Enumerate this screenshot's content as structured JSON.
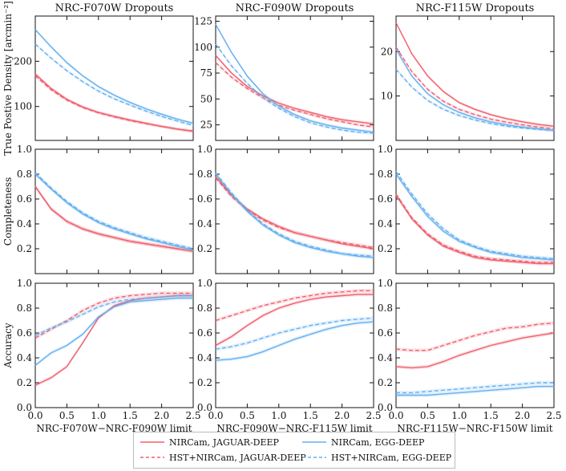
{
  "figure": {
    "y_labels": [
      "True Postive Density [arcmin⁻²]",
      "Completeness",
      "Accuracy"
    ],
    "legend": [
      {
        "label": "NIRCam, JAGUAR-DEEP",
        "color": "#f0606e",
        "dash": false
      },
      {
        "label": "NIRCam, EGG-DEEP",
        "color": "#66b0f0",
        "dash": false
      },
      {
        "label": "HST+NIRCam, JAGUAR-DEEP",
        "color": "#f0606e",
        "dash": true
      },
      {
        "label": "HST+NIRCam, EGG-DEEP",
        "color": "#66b0f0",
        "dash": true
      }
    ]
  },
  "chart_data": [
    {
      "type": "line",
      "row": 0,
      "col": 0,
      "title": "NRC-F070W Dropouts",
      "xlabel": "",
      "ylabel": "True Postive Density [arcmin⁻²]",
      "xlim": [
        0,
        2.5
      ],
      "ylim": [
        25,
        300
      ],
      "yticks": [
        100,
        200
      ],
      "x": [
        0,
        0.25,
        0.5,
        0.75,
        1,
        1.25,
        1.5,
        1.75,
        2,
        2.25,
        2.5
      ],
      "series": [
        {
          "name": "NIRCam, JAGUAR-DEEP",
          "color": "#f0606e",
          "dash": false,
          "values": [
            172,
            140,
            116,
            99,
            87,
            78,
            70,
            63,
            56,
            50,
            45
          ]
        },
        {
          "name": "HST+NIRCam, JAGUAR-DEEP",
          "color": "#f0606e",
          "dash": true,
          "values": [
            168,
            137,
            114,
            98,
            86,
            77,
            69,
            62,
            56,
            50,
            46
          ]
        },
        {
          "name": "NIRCam, EGG-DEEP",
          "color": "#66b0f0",
          "dash": false,
          "values": [
            270,
            232,
            197,
            168,
            144,
            125,
            109,
            95,
            83,
            72,
            63
          ]
        },
        {
          "name": "HST+NIRCam, EGG-DEEP",
          "color": "#66b0f0",
          "dash": true,
          "values": [
            238,
            207,
            179,
            155,
            134,
            117,
            103,
            90,
            78,
            68,
            58
          ]
        }
      ]
    },
    {
      "type": "line",
      "row": 0,
      "col": 1,
      "title": "NRC-F090W Dropouts",
      "xlabel": "",
      "ylabel": "",
      "xlim": [
        0,
        2.5
      ],
      "ylim": [
        10,
        130
      ],
      "yticks": [
        25,
        50,
        75,
        100,
        125
      ],
      "x": [
        0,
        0.25,
        0.5,
        0.75,
        1,
        1.25,
        1.5,
        1.75,
        2,
        2.25,
        2.5
      ],
      "series": [
        {
          "name": "NIRCam, JAGUAR-DEEP",
          "color": "#f0606e",
          "dash": false,
          "values": [
            92,
            75,
            62,
            53,
            46,
            41,
            37,
            33,
            30,
            28,
            26
          ]
        },
        {
          "name": "HST+NIRCam, JAGUAR-DEEP",
          "color": "#f0606e",
          "dash": true,
          "values": [
            85,
            71,
            60,
            51,
            44,
            39,
            35,
            31,
            28,
            25,
            23
          ]
        },
        {
          "name": "NIRCam, EGG-DEEP",
          "color": "#66b0f0",
          "dash": false,
          "values": [
            122,
            95,
            72,
            55,
            43,
            35,
            29,
            25,
            22,
            20,
            18
          ]
        },
        {
          "name": "HST+NIRCam, EGG-DEEP",
          "color": "#66b0f0",
          "dash": true,
          "values": [
            103,
            82,
            65,
            51,
            41,
            33,
            27,
            23,
            20,
            18,
            17
          ]
        }
      ]
    },
    {
      "type": "line",
      "row": 0,
      "col": 2,
      "title": "NRC-F115W Dropouts",
      "xlabel": "",
      "ylabel": "",
      "xlim": [
        0,
        2.5
      ],
      "ylim": [
        0,
        28
      ],
      "yticks": [
        10,
        20
      ],
      "x": [
        0,
        0.25,
        0.5,
        0.75,
        1,
        1.25,
        1.5,
        1.75,
        2,
        2.25,
        2.5
      ],
      "series": [
        {
          "name": "NIRCam, JAGUAR-DEEP",
          "color": "#f0606e",
          "dash": false,
          "values": [
            26.5,
            19.5,
            14.5,
            11,
            8.5,
            7,
            5.8,
            4.9,
            4.2,
            3.6,
            3.2
          ]
        },
        {
          "name": "HST+NIRCam, JAGUAR-DEEP",
          "color": "#f0606e",
          "dash": true,
          "values": [
            21,
            15.5,
            11.5,
            8.8,
            7,
            5.8,
            4.8,
            4.1,
            3.5,
            3,
            2.6
          ]
        },
        {
          "name": "NIRCam, EGG-DEEP",
          "color": "#66b0f0",
          "dash": false,
          "values": [
            20.5,
            14.5,
            10.5,
            8,
            6.3,
            5.1,
            4.2,
            3.5,
            3,
            2.6,
            2.3
          ]
        },
        {
          "name": "HST+NIRCam, EGG-DEEP",
          "color": "#66b0f0",
          "dash": true,
          "values": [
            16,
            12,
            9,
            7,
            5.6,
            4.6,
            3.8,
            3.2,
            2.8,
            2.5,
            2.2
          ]
        }
      ]
    },
    {
      "type": "line",
      "row": 1,
      "col": 0,
      "title": "",
      "xlabel": "",
      "ylabel": "Completeness",
      "xlim": [
        0,
        2.5
      ],
      "ylim": [
        0,
        1
      ],
      "yticks": [
        0.2,
        0.4,
        0.6,
        0.8,
        1.0
      ],
      "x": [
        0,
        0.25,
        0.5,
        0.75,
        1,
        1.25,
        1.5,
        1.75,
        2,
        2.25,
        2.5
      ],
      "series": [
        {
          "name": "NIRCam, JAGUAR-DEEP",
          "color": "#f0606e",
          "dash": false,
          "values": [
            0.7,
            0.52,
            0.42,
            0.36,
            0.32,
            0.29,
            0.26,
            0.24,
            0.22,
            0.2,
            0.18
          ]
        },
        {
          "name": "HST+NIRCam, JAGUAR-DEEP",
          "color": "#f0606e",
          "dash": true,
          "values": [
            0.7,
            0.52,
            0.42,
            0.36,
            0.32,
            0.29,
            0.26,
            0.24,
            0.22,
            0.2,
            0.18
          ]
        },
        {
          "name": "NIRCam, EGG-DEEP",
          "color": "#66b0f0",
          "dash": false,
          "values": [
            0.8,
            0.68,
            0.57,
            0.48,
            0.41,
            0.36,
            0.32,
            0.28,
            0.25,
            0.22,
            0.19
          ]
        },
        {
          "name": "HST+NIRCam, EGG-DEEP",
          "color": "#66b0f0",
          "dash": true,
          "values": [
            0.81,
            0.69,
            0.58,
            0.49,
            0.42,
            0.37,
            0.33,
            0.29,
            0.26,
            0.23,
            0.2
          ]
        }
      ]
    },
    {
      "type": "line",
      "row": 1,
      "col": 1,
      "title": "",
      "xlabel": "",
      "ylabel": "",
      "xlim": [
        0,
        2.5
      ],
      "ylim": [
        0,
        1
      ],
      "yticks": [
        0.2,
        0.4,
        0.6,
        0.8,
        1.0
      ],
      "x": [
        0,
        0.25,
        0.5,
        0.75,
        1,
        1.25,
        1.5,
        1.75,
        2,
        2.25,
        2.5
      ],
      "series": [
        {
          "name": "NIRCam, JAGUAR-DEEP",
          "color": "#f0606e",
          "dash": false,
          "values": [
            0.78,
            0.63,
            0.52,
            0.44,
            0.38,
            0.33,
            0.3,
            0.27,
            0.24,
            0.22,
            0.2
          ]
        },
        {
          "name": "HST+NIRCam, JAGUAR-DEEP",
          "color": "#f0606e",
          "dash": true,
          "values": [
            0.77,
            0.62,
            0.51,
            0.43,
            0.37,
            0.33,
            0.3,
            0.27,
            0.25,
            0.23,
            0.21
          ]
        },
        {
          "name": "NIRCam, EGG-DEEP",
          "color": "#66b0f0",
          "dash": false,
          "values": [
            0.8,
            0.64,
            0.5,
            0.39,
            0.31,
            0.25,
            0.21,
            0.18,
            0.16,
            0.14,
            0.13
          ]
        },
        {
          "name": "HST+NIRCam, EGG-DEEP",
          "color": "#66b0f0",
          "dash": true,
          "values": [
            0.81,
            0.65,
            0.51,
            0.4,
            0.32,
            0.26,
            0.22,
            0.19,
            0.16,
            0.15,
            0.14
          ]
        }
      ]
    },
    {
      "type": "line",
      "row": 1,
      "col": 2,
      "title": "",
      "xlabel": "",
      "ylabel": "",
      "xlim": [
        0,
        2.5
      ],
      "ylim": [
        0,
        1
      ],
      "yticks": [
        0.2,
        0.4,
        0.6,
        0.8,
        1.0
      ],
      "x": [
        0,
        0.25,
        0.5,
        0.75,
        1,
        1.25,
        1.5,
        1.75,
        2,
        2.25,
        2.5
      ],
      "series": [
        {
          "name": "NIRCam, JAGUAR-DEEP",
          "color": "#f0606e",
          "dash": false,
          "values": [
            0.63,
            0.44,
            0.31,
            0.22,
            0.17,
            0.13,
            0.11,
            0.1,
            0.09,
            0.08,
            0.08
          ]
        },
        {
          "name": "HST+NIRCam, JAGUAR-DEEP",
          "color": "#f0606e",
          "dash": true,
          "values": [
            0.64,
            0.45,
            0.32,
            0.23,
            0.18,
            0.14,
            0.12,
            0.11,
            0.1,
            0.09,
            0.09
          ]
        },
        {
          "name": "NIRCam, EGG-DEEP",
          "color": "#66b0f0",
          "dash": false,
          "values": [
            0.8,
            0.62,
            0.46,
            0.34,
            0.26,
            0.21,
            0.17,
            0.15,
            0.13,
            0.12,
            0.11
          ]
        },
        {
          "name": "HST+NIRCam, EGG-DEEP",
          "color": "#66b0f0",
          "dash": true,
          "values": [
            0.82,
            0.64,
            0.48,
            0.36,
            0.27,
            0.22,
            0.18,
            0.16,
            0.14,
            0.13,
            0.12
          ]
        }
      ]
    },
    {
      "type": "line",
      "row": 2,
      "col": 0,
      "title": "",
      "xlabel": "NRC-F070W−NRC-F090W limit",
      "ylabel": "Accuracy",
      "xlim": [
        0,
        2.5
      ],
      "ylim": [
        0,
        1
      ],
      "yticks": [
        0.0,
        0.2,
        0.4,
        0.6,
        0.8,
        1.0
      ],
      "xticks": [
        0.0,
        0.5,
        1.0,
        1.5,
        2.0,
        2.5
      ],
      "x": [
        0,
        0.25,
        0.5,
        0.75,
        1,
        1.25,
        1.5,
        1.75,
        2,
        2.25,
        2.5
      ],
      "series": [
        {
          "name": "NIRCam, JAGUAR-DEEP",
          "color": "#f0606e",
          "dash": false,
          "values": [
            0.18,
            0.24,
            0.33,
            0.52,
            0.72,
            0.82,
            0.86,
            0.88,
            0.89,
            0.9,
            0.9
          ]
        },
        {
          "name": "HST+NIRCam, JAGUAR-DEEP",
          "color": "#f0606e",
          "dash": true,
          "values": [
            0.56,
            0.63,
            0.7,
            0.78,
            0.84,
            0.88,
            0.9,
            0.91,
            0.92,
            0.92,
            0.92
          ]
        },
        {
          "name": "NIRCam, EGG-DEEP",
          "color": "#66b0f0",
          "dash": false,
          "values": [
            0.34,
            0.44,
            0.5,
            0.59,
            0.73,
            0.81,
            0.85,
            0.86,
            0.87,
            0.88,
            0.88
          ]
        },
        {
          "name": "HST+NIRCam, EGG-DEEP",
          "color": "#66b0f0",
          "dash": true,
          "values": [
            0.58,
            0.64,
            0.69,
            0.75,
            0.81,
            0.85,
            0.87,
            0.88,
            0.89,
            0.9,
            0.9
          ]
        }
      ]
    },
    {
      "type": "line",
      "row": 2,
      "col": 1,
      "title": "",
      "xlabel": "NRC-F090W−NRC-F115W limit",
      "ylabel": "",
      "xlim": [
        0,
        2.5
      ],
      "ylim": [
        0,
        1
      ],
      "yticks": [
        0.0,
        0.2,
        0.4,
        0.6,
        0.8,
        1.0
      ],
      "xticks": [
        0.0,
        0.5,
        1.0,
        1.5,
        2.0,
        2.5
      ],
      "x": [
        0,
        0.25,
        0.5,
        0.75,
        1,
        1.25,
        1.5,
        1.75,
        2,
        2.25,
        2.5
      ],
      "series": [
        {
          "name": "NIRCam, JAGUAR-DEEP",
          "color": "#f0606e",
          "dash": false,
          "values": [
            0.5,
            0.57,
            0.66,
            0.74,
            0.8,
            0.84,
            0.87,
            0.89,
            0.9,
            0.91,
            0.91
          ]
        },
        {
          "name": "HST+NIRCam, JAGUAR-DEEP",
          "color": "#f0606e",
          "dash": true,
          "values": [
            0.7,
            0.74,
            0.78,
            0.82,
            0.85,
            0.88,
            0.9,
            0.92,
            0.93,
            0.94,
            0.94
          ]
        },
        {
          "name": "NIRCam, EGG-DEEP",
          "color": "#66b0f0",
          "dash": false,
          "values": [
            0.38,
            0.39,
            0.41,
            0.45,
            0.5,
            0.55,
            0.59,
            0.63,
            0.66,
            0.68,
            0.69
          ]
        },
        {
          "name": "HST+NIRCam, EGG-DEEP",
          "color": "#66b0f0",
          "dash": true,
          "values": [
            0.47,
            0.49,
            0.52,
            0.56,
            0.6,
            0.63,
            0.66,
            0.68,
            0.7,
            0.71,
            0.72
          ]
        }
      ]
    },
    {
      "type": "line",
      "row": 2,
      "col": 2,
      "title": "",
      "xlabel": "NRC-F115W−NRC-F150W limit",
      "ylabel": "",
      "xlim": [
        0,
        2.5
      ],
      "ylim": [
        0,
        1
      ],
      "yticks": [
        0.0,
        0.2,
        0.4,
        0.6,
        0.8,
        1.0
      ],
      "xticks": [
        0.0,
        0.5,
        1.0,
        1.5,
        2.0,
        2.5
      ],
      "x": [
        0,
        0.25,
        0.5,
        0.75,
        1,
        1.25,
        1.5,
        1.75,
        2,
        2.25,
        2.5
      ],
      "series": [
        {
          "name": "NIRCam, JAGUAR-DEEP",
          "color": "#f0606e",
          "dash": false,
          "values": [
            0.33,
            0.32,
            0.33,
            0.37,
            0.42,
            0.46,
            0.5,
            0.53,
            0.56,
            0.58,
            0.6
          ]
        },
        {
          "name": "HST+NIRCam, JAGUAR-DEEP",
          "color": "#f0606e",
          "dash": true,
          "values": [
            0.47,
            0.46,
            0.46,
            0.5,
            0.54,
            0.58,
            0.61,
            0.64,
            0.65,
            0.67,
            0.68
          ]
        },
        {
          "name": "NIRCam, EGG-DEEP",
          "color": "#66b0f0",
          "dash": false,
          "values": [
            0.1,
            0.1,
            0.1,
            0.11,
            0.12,
            0.13,
            0.14,
            0.15,
            0.16,
            0.17,
            0.17
          ]
        },
        {
          "name": "HST+NIRCam, EGG-DEEP",
          "color": "#66b0f0",
          "dash": true,
          "values": [
            0.12,
            0.12,
            0.13,
            0.14,
            0.15,
            0.16,
            0.17,
            0.18,
            0.19,
            0.2,
            0.2
          ]
        }
      ]
    }
  ]
}
